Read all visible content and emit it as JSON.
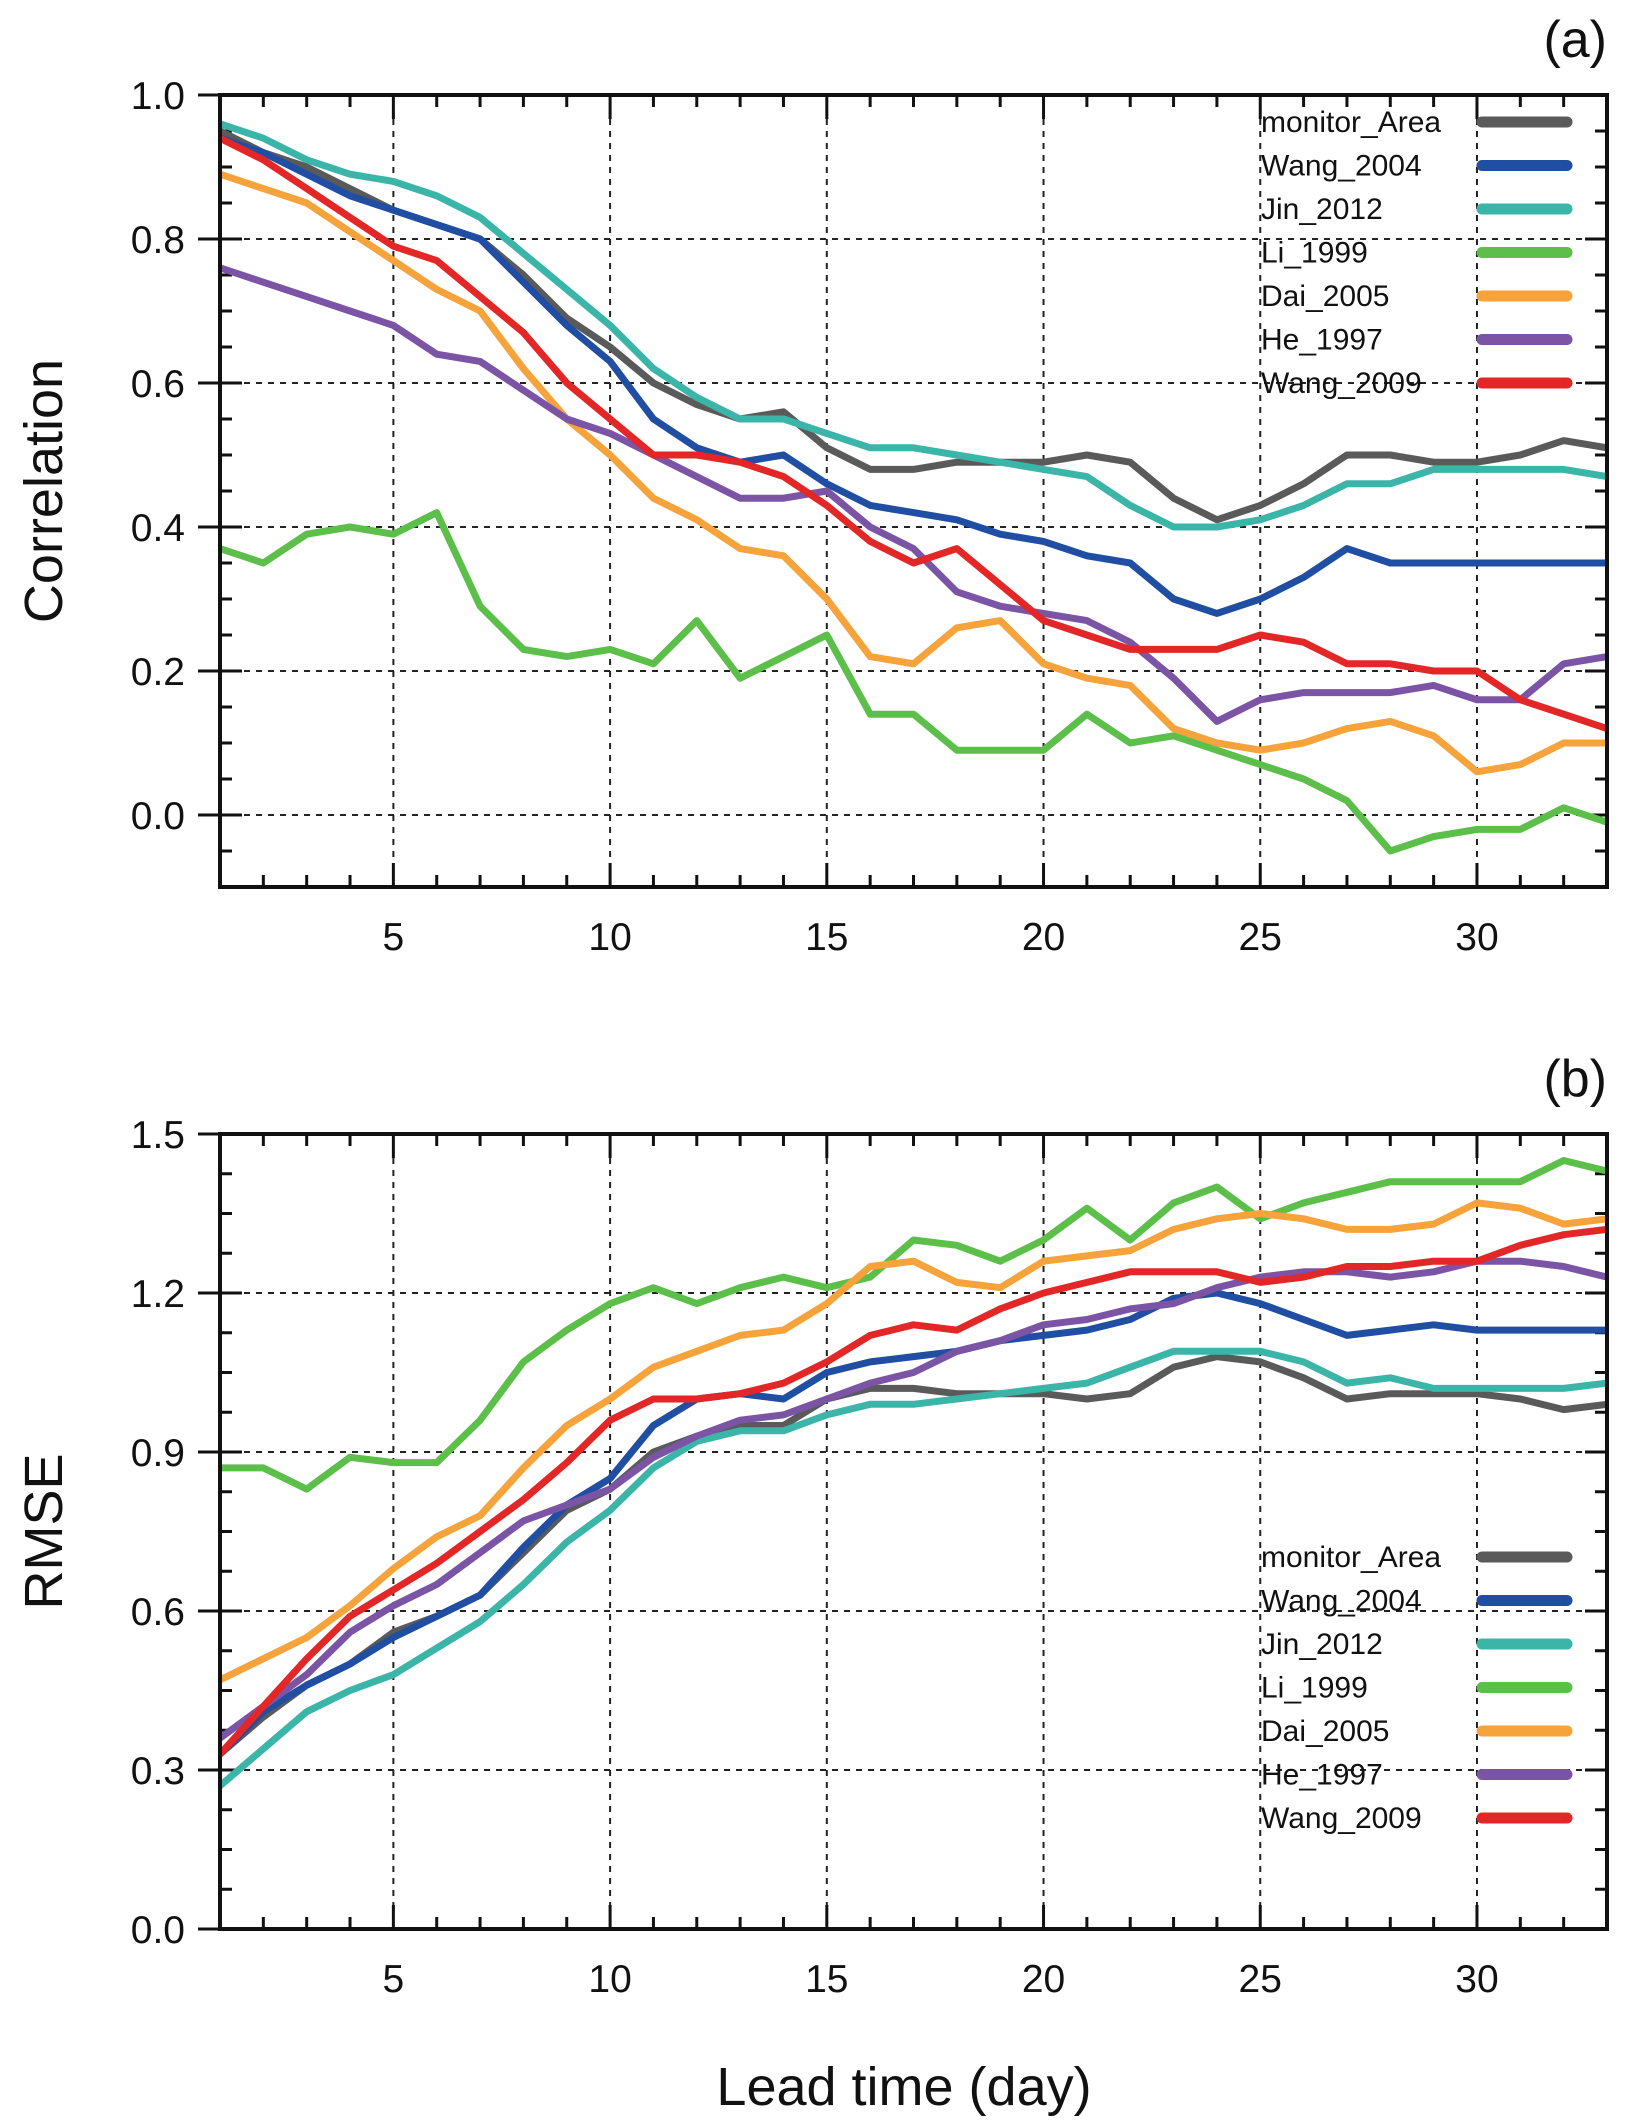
{
  "figure": {
    "xlabel": "Lead time (day)",
    "colors": {
      "monitor_Area": "#5a5a5a",
      "Wang_2004": "#1f4ea3",
      "Jin_2012": "#3bb5a8",
      "Li_1999": "#5bbf4a",
      "Dai_2005": "#f5a33a",
      "He_1997": "#7b54a6",
      "Wang_2009": "#e32626"
    }
  },
  "chart_data": [
    {
      "type": "line",
      "panel": "(a)",
      "title": "",
      "xlabel": "",
      "ylabel": "Correlation",
      "xlim": [
        1,
        33
      ],
      "ylim": [
        -0.1,
        1.0
      ],
      "xticks": [
        5,
        10,
        15,
        20,
        25,
        30
      ],
      "yticks": [
        0.0,
        0.2,
        0.4,
        0.6,
        0.8,
        1.0
      ],
      "ytick_labels": [
        "0.0",
        "0.2",
        "0.4",
        "0.6",
        "0.8",
        "1.0"
      ],
      "grid": true,
      "legend_position": "top-right",
      "x": [
        1,
        2,
        3,
        4,
        5,
        6,
        7,
        8,
        9,
        10,
        11,
        12,
        13,
        14,
        15,
        16,
        17,
        18,
        19,
        20,
        21,
        22,
        23,
        24,
        25,
        26,
        27,
        28,
        29,
        30,
        31,
        32,
        33
      ],
      "series": [
        {
          "name": "monitor_Area",
          "values": [
            0.95,
            0.92,
            0.9,
            0.87,
            0.84,
            0.82,
            0.8,
            0.75,
            0.69,
            0.65,
            0.6,
            0.57,
            0.55,
            0.56,
            0.51,
            0.48,
            0.48,
            0.49,
            0.49,
            0.49,
            0.5,
            0.49,
            0.44,
            0.41,
            0.43,
            0.46,
            0.5,
            0.5,
            0.49,
            0.49,
            0.5,
            0.52,
            0.51
          ]
        },
        {
          "name": "Wang_2004",
          "values": [
            0.94,
            0.92,
            0.89,
            0.86,
            0.84,
            0.82,
            0.8,
            0.74,
            0.68,
            0.63,
            0.55,
            0.51,
            0.49,
            0.5,
            0.46,
            0.43,
            0.42,
            0.41,
            0.39,
            0.38,
            0.36,
            0.35,
            0.3,
            0.28,
            0.3,
            0.33,
            0.37,
            0.35,
            0.35,
            0.35,
            0.35,
            0.35,
            0.35
          ]
        },
        {
          "name": "Jin_2012",
          "values": [
            0.96,
            0.94,
            0.91,
            0.89,
            0.88,
            0.86,
            0.83,
            0.78,
            0.73,
            0.68,
            0.62,
            0.58,
            0.55,
            0.55,
            0.53,
            0.51,
            0.51,
            0.5,
            0.49,
            0.48,
            0.47,
            0.43,
            0.4,
            0.4,
            0.41,
            0.43,
            0.46,
            0.46,
            0.48,
            0.48,
            0.48,
            0.48,
            0.47
          ]
        },
        {
          "name": "Li_1999",
          "values": [
            0.37,
            0.35,
            0.39,
            0.4,
            0.39,
            0.42,
            0.29,
            0.23,
            0.22,
            0.23,
            0.21,
            0.27,
            0.19,
            0.22,
            0.25,
            0.14,
            0.14,
            0.09,
            0.09,
            0.09,
            0.14,
            0.1,
            0.11,
            0.09,
            0.07,
            0.05,
            0.02,
            -0.05,
            -0.03,
            -0.02,
            -0.02,
            0.01,
            -0.01
          ]
        },
        {
          "name": "Dai_2005",
          "values": [
            0.89,
            0.87,
            0.85,
            0.81,
            0.77,
            0.73,
            0.7,
            0.62,
            0.55,
            0.5,
            0.44,
            0.41,
            0.37,
            0.36,
            0.3,
            0.22,
            0.21,
            0.26,
            0.27,
            0.21,
            0.19,
            0.18,
            0.12,
            0.1,
            0.09,
            0.1,
            0.12,
            0.13,
            0.11,
            0.06,
            0.07,
            0.1,
            0.1
          ]
        },
        {
          "name": "He_1997",
          "values": [
            0.76,
            0.74,
            0.72,
            0.7,
            0.68,
            0.64,
            0.63,
            0.59,
            0.55,
            0.53,
            0.5,
            0.47,
            0.44,
            0.44,
            0.45,
            0.4,
            0.37,
            0.31,
            0.29,
            0.28,
            0.27,
            0.24,
            0.19,
            0.13,
            0.16,
            0.17,
            0.17,
            0.17,
            0.18,
            0.16,
            0.16,
            0.21,
            0.22
          ]
        },
        {
          "name": "Wang_2009",
          "values": [
            0.94,
            0.91,
            0.87,
            0.83,
            0.79,
            0.77,
            0.72,
            0.67,
            0.6,
            0.55,
            0.5,
            0.5,
            0.49,
            0.47,
            0.43,
            0.38,
            0.35,
            0.37,
            0.32,
            0.27,
            0.25,
            0.23,
            0.23,
            0.23,
            0.25,
            0.24,
            0.21,
            0.21,
            0.2,
            0.2,
            0.16,
            0.14,
            0.12
          ]
        }
      ]
    },
    {
      "type": "line",
      "panel": "(b)",
      "title": "",
      "xlabel": "Lead time (day)",
      "ylabel": "RMSE",
      "xlim": [
        1,
        33
      ],
      "ylim": [
        0.0,
        1.5
      ],
      "xticks": [
        5,
        10,
        15,
        20,
        25,
        30
      ],
      "yticks": [
        0.0,
        0.3,
        0.6,
        0.9,
        1.2,
        1.5
      ],
      "ytick_labels": [
        "0.0",
        "0.3",
        "0.6",
        "0.9",
        "1.2",
        "1.5"
      ],
      "grid": true,
      "legend_position": "bottom-right",
      "x": [
        1,
        2,
        3,
        4,
        5,
        6,
        7,
        8,
        9,
        10,
        11,
        12,
        13,
        14,
        15,
        16,
        17,
        18,
        19,
        20,
        21,
        22,
        23,
        24,
        25,
        26,
        27,
        28,
        29,
        30,
        31,
        32,
        33
      ],
      "series": [
        {
          "name": "monitor_Area",
          "values": [
            0.33,
            0.4,
            0.46,
            0.5,
            0.56,
            0.59,
            0.63,
            0.71,
            0.79,
            0.83,
            0.9,
            0.93,
            0.95,
            0.95,
            1.0,
            1.02,
            1.02,
            1.01,
            1.01,
            1.01,
            1.0,
            1.01,
            1.06,
            1.08,
            1.07,
            1.04,
            1.0,
            1.01,
            1.01,
            1.01,
            1.0,
            0.98,
            0.99
          ]
        },
        {
          "name": "Wang_2004",
          "values": [
            0.33,
            0.41,
            0.46,
            0.5,
            0.55,
            0.59,
            0.63,
            0.72,
            0.8,
            0.85,
            0.95,
            1.0,
            1.01,
            1.0,
            1.05,
            1.07,
            1.08,
            1.09,
            1.11,
            1.12,
            1.13,
            1.15,
            1.19,
            1.2,
            1.18,
            1.15,
            1.12,
            1.13,
            1.14,
            1.13,
            1.13,
            1.13,
            1.13
          ]
        },
        {
          "name": "Jin_2012",
          "values": [
            0.27,
            0.34,
            0.41,
            0.45,
            0.48,
            0.53,
            0.58,
            0.65,
            0.73,
            0.79,
            0.87,
            0.92,
            0.94,
            0.94,
            0.97,
            0.99,
            0.99,
            1.0,
            1.01,
            1.02,
            1.03,
            1.06,
            1.09,
            1.09,
            1.09,
            1.07,
            1.03,
            1.04,
            1.02,
            1.02,
            1.02,
            1.02,
            1.03
          ]
        },
        {
          "name": "Li_1999",
          "values": [
            0.87,
            0.87,
            0.83,
            0.89,
            0.88,
            0.88,
            0.96,
            1.07,
            1.13,
            1.18,
            1.21,
            1.18,
            1.21,
            1.23,
            1.21,
            1.23,
            1.3,
            1.29,
            1.26,
            1.3,
            1.36,
            1.3,
            1.37,
            1.4,
            1.34,
            1.37,
            1.39,
            1.41,
            1.41,
            1.41,
            1.41,
            1.45,
            1.43
          ]
        },
        {
          "name": "Dai_2005",
          "values": [
            0.47,
            0.51,
            0.55,
            0.61,
            0.68,
            0.74,
            0.78,
            0.87,
            0.95,
            1.0,
            1.06,
            1.09,
            1.12,
            1.13,
            1.18,
            1.25,
            1.26,
            1.22,
            1.21,
            1.26,
            1.27,
            1.28,
            1.32,
            1.34,
            1.35,
            1.34,
            1.32,
            1.32,
            1.33,
            1.37,
            1.36,
            1.33,
            1.34
          ]
        },
        {
          "name": "He_1997",
          "values": [
            0.36,
            0.42,
            0.48,
            0.56,
            0.61,
            0.65,
            0.71,
            0.77,
            0.8,
            0.83,
            0.89,
            0.93,
            0.96,
            0.97,
            1.0,
            1.03,
            1.05,
            1.09,
            1.11,
            1.14,
            1.15,
            1.17,
            1.18,
            1.21,
            1.23,
            1.24,
            1.24,
            1.23,
            1.24,
            1.26,
            1.26,
            1.25,
            1.23
          ]
        },
        {
          "name": "Wang_2009",
          "values": [
            0.33,
            0.42,
            0.51,
            0.59,
            0.64,
            0.69,
            0.75,
            0.81,
            0.88,
            0.96,
            1.0,
            1.0,
            1.01,
            1.03,
            1.07,
            1.12,
            1.14,
            1.13,
            1.17,
            1.2,
            1.22,
            1.24,
            1.24,
            1.24,
            1.22,
            1.23,
            1.25,
            1.25,
            1.26,
            1.26,
            1.29,
            1.31,
            1.32
          ]
        }
      ]
    }
  ]
}
